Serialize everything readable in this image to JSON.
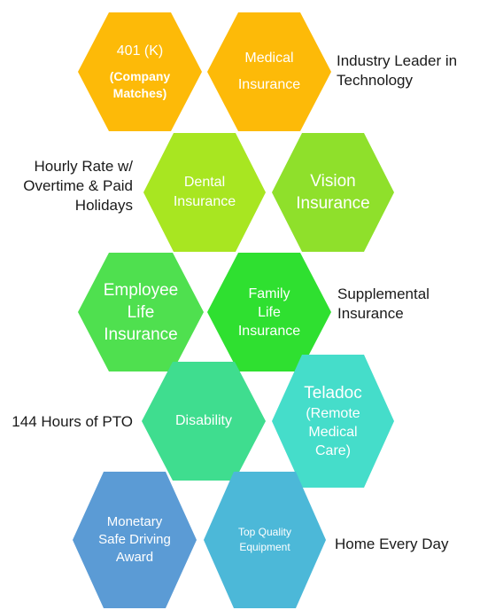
{
  "hexagons": [
    {
      "id": "401k",
      "lines": [
        "401 (K)",
        "(Company",
        "Matches)"
      ],
      "fill": "#FDBA08"
    },
    {
      "id": "medical",
      "lines": [
        "Medical",
        "Insurance"
      ],
      "fill": "#FDBA08"
    },
    {
      "id": "dental",
      "lines": [
        "Dental",
        "Insurance"
      ],
      "fill": "#A8E621"
    },
    {
      "id": "vision",
      "lines": [
        "Vision",
        "Insurance"
      ],
      "fill": "#8FE02B"
    },
    {
      "id": "employee-life",
      "lines": [
        "Employee",
        "Life",
        "Insurance"
      ],
      "fill": "#4FE04F"
    },
    {
      "id": "family-life",
      "lines": [
        "Family",
        "Life",
        "Insurance"
      ],
      "fill": "#2FE030"
    },
    {
      "id": "disability",
      "lines": [
        "Disability"
      ],
      "fill": "#3FDD8F"
    },
    {
      "id": "teladoc",
      "lines": [
        "Teladoc",
        "(Remote",
        "Medical",
        "Care)"
      ],
      "fill": "#45DDCA"
    },
    {
      "id": "safe-driving",
      "lines": [
        "Monetary",
        "Safe Driving",
        "Award"
      ],
      "fill": "#5B9BD5"
    },
    {
      "id": "equipment",
      "lines": [
        "Top Quality",
        "Equipment"
      ],
      "fill": "#4CB8D8"
    }
  ],
  "side_labels": [
    {
      "id": "industry-leader",
      "lines": [
        "Industry Leader in",
        "Technology"
      ]
    },
    {
      "id": "hourly-rate",
      "lines": [
        "Hourly Rate w/",
        "Overtime & Paid",
        "Holidays"
      ]
    },
    {
      "id": "supplemental",
      "lines": [
        "Supplemental",
        "Insurance"
      ]
    },
    {
      "id": "pto",
      "lines": [
        "144 Hours of PTO"
      ]
    },
    {
      "id": "home-every-day",
      "lines": [
        "Home Every Day"
      ]
    }
  ]
}
